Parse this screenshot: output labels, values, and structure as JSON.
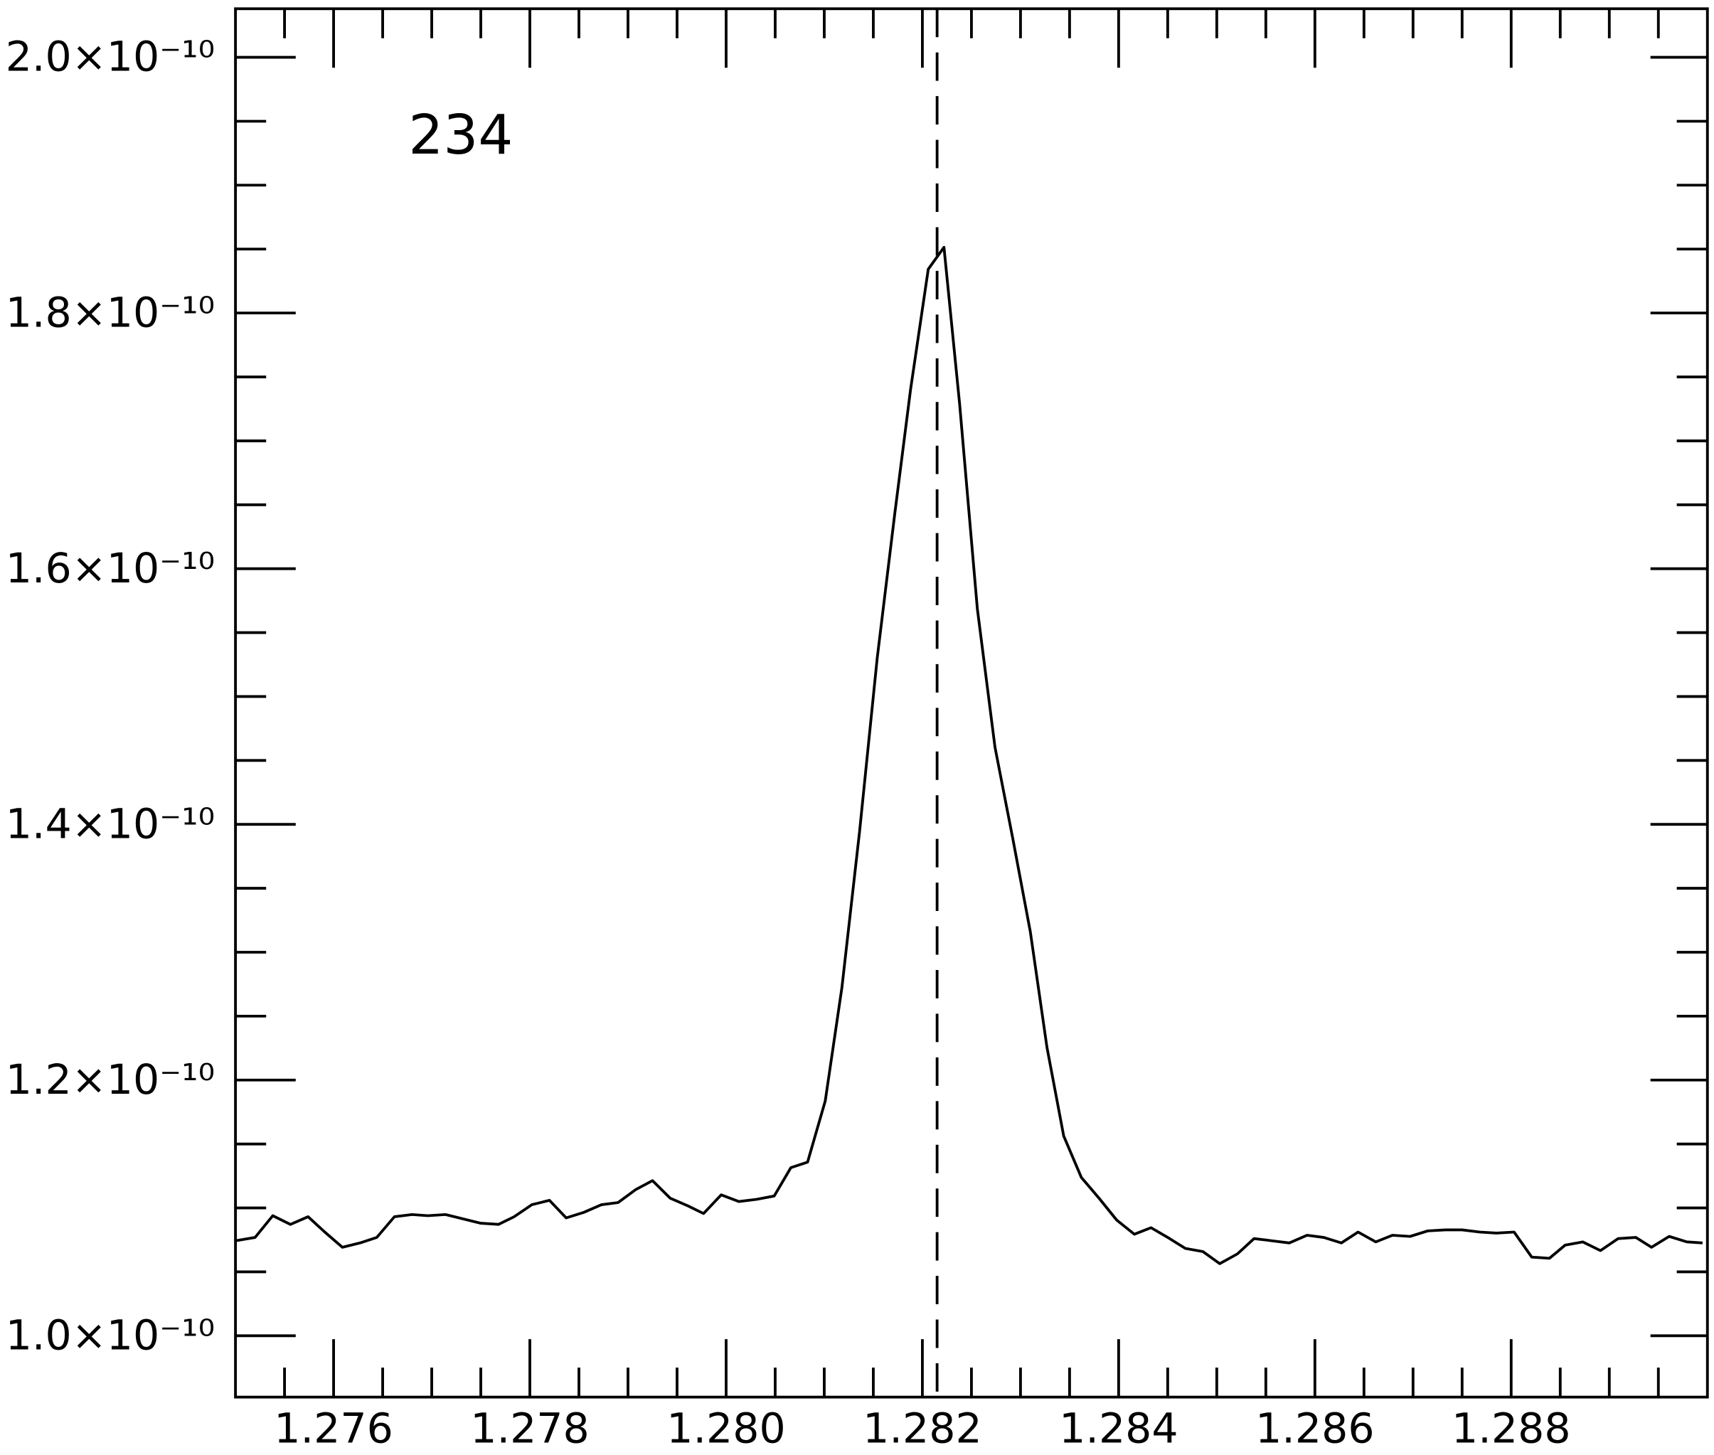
{
  "chart_data": {
    "type": "line",
    "annotation": "234",
    "annotation_color": "#0000ff",
    "vline": 1.28215,
    "xlim": [
      1.275,
      1.29
    ],
    "xticks": [
      1.276,
      1.278,
      {
        "value": 1.28,
        "label": "1.280"
      },
      1.282,
      1.284,
      1.286,
      1.288
    ],
    "ylim": [
      9.52e-11,
      2.038e-10
    ],
    "yticks": [
      {
        "value": 1e-10,
        "label": "1.0×10⁻¹⁰"
      },
      {
        "value": 1.2e-10,
        "label": "1.2×10⁻¹⁰"
      },
      {
        "value": 1.4e-10,
        "label": "1.4×10⁻¹⁰"
      },
      {
        "value": 1.6e-10,
        "label": "1.6×10⁻¹⁰"
      },
      {
        "value": 1.8e-10,
        "label": "1.8×10⁻¹⁰"
      },
      {
        "value": 2e-10,
        "label": "2.0×10⁻¹⁰"
      }
    ],
    "series": [
      {
        "color": "#000000",
        "x": [
          1.275,
          1.2752,
          1.27538,
          1.27556,
          1.27574,
          1.27591,
          1.27609,
          1.27627,
          1.27644,
          1.27662,
          1.2768,
          1.27696,
          1.27714,
          1.27732,
          1.2775,
          1.27768,
          1.27784,
          1.27802,
          1.2782,
          1.27837,
          1.27855,
          1.27873,
          1.2789,
          1.27908,
          1.27925,
          1.27943,
          1.27961,
          1.27977,
          1.27995,
          1.28013,
          1.28031,
          1.28049,
          1.28066,
          1.28083,
          1.28101,
          1.28118,
          1.28136,
          1.28154,
          1.28172,
          1.28188,
          1.28206,
          1.28222,
          1.28238,
          1.28256,
          1.28274,
          1.28292,
          1.2831,
          1.28327,
          1.28344,
          1.28362,
          1.2838,
          1.28398,
          1.28416,
          1.28433,
          1.2845,
          1.28468,
          1.28486,
          1.28503,
          1.28521,
          1.28538,
          1.28556,
          1.28574,
          1.28592,
          1.28609,
          1.28627,
          1.28644,
          1.28662,
          1.28679,
          1.28697,
          1.28715,
          1.28733,
          1.2875,
          1.28768,
          1.28785,
          1.28803,
          1.28821,
          1.28839,
          1.28855,
          1.28873,
          1.28891,
          1.28909,
          1.28927,
          1.28943,
          1.28961,
          1.28979,
          1.28995
        ],
        "values": [
          1.0743e-10,
          1.0769e-10,
          1.0939e-10,
          1.0871e-10,
          1.0931e-10,
          1.0811e-10,
          1.0692e-10,
          1.0726e-10,
          1.0769e-10,
          1.0931e-10,
          1.0948e-10,
          1.0939e-10,
          1.0948e-10,
          1.0914e-10,
          1.088e-10,
          1.0871e-10,
          1.0931e-10,
          1.1025e-10,
          1.1059e-10,
          1.0922e-10,
          1.0965e-10,
          1.1025e-10,
          1.1042e-10,
          1.1144e-10,
          1.1213e-10,
          1.1076e-10,
          1.1016e-10,
          1.0956e-10,
          1.1102e-10,
          1.105e-10,
          1.1067e-10,
          1.1093e-10,
          1.1315e-10,
          1.1358e-10,
          1.1836e-10,
          1.2724e-10,
          1.3945e-10,
          1.5303e-10,
          1.6439e-10,
          1.7404e-10,
          1.8343e-10,
          1.8514e-10,
          1.7284e-10,
          1.5687e-10,
          1.4603e-10,
          1.3894e-10,
          1.316e-10,
          1.2254e-10,
          1.1563e-10,
          1.1238e-10,
          1.1076e-10,
          1.0905e-10,
          1.0794e-10,
          1.0845e-10,
          1.0769e-10,
          1.0683e-10,
          1.0658e-10,
          1.0564e-10,
          1.064e-10,
          1.076e-10,
          1.0743e-10,
          1.0726e-10,
          1.0786e-10,
          1.0769e-10,
          1.0726e-10,
          1.0811e-10,
          1.0734e-10,
          1.0786e-10,
          1.0777e-10,
          1.082e-10,
          1.0828e-10,
          1.0828e-10,
          1.0811e-10,
          1.0803e-10,
          1.0811e-10,
          1.0615e-10,
          1.0606e-10,
          1.0709e-10,
          1.0734e-10,
          1.0666e-10,
          1.076e-10,
          1.0769e-10,
          1.0692e-10,
          1.0777e-10,
          1.0734e-10,
          1.0726e-10
        ]
      }
    ]
  }
}
